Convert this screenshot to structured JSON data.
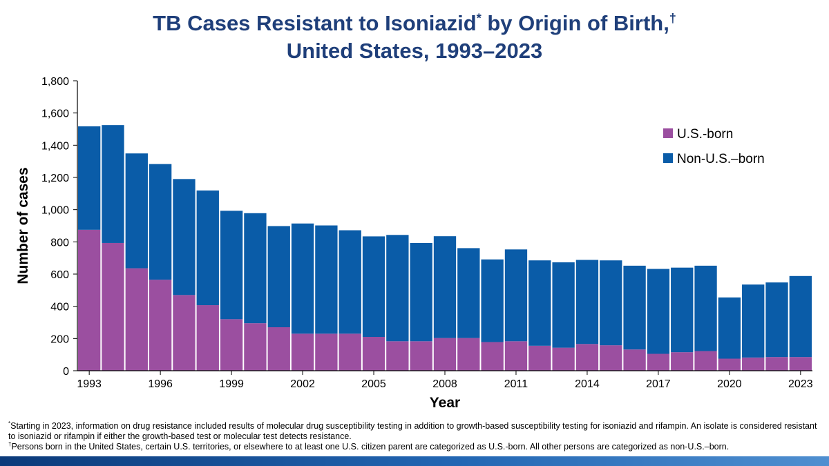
{
  "title": {
    "line1": "TB Cases Resistant to Isoniazid",
    "sup1": "*",
    "line1b": " by Origin of Birth,",
    "sup2": "†",
    "line2": "United States, 1993–2023"
  },
  "footnotes": {
    "note1_mark": "*",
    "note1": "Starting in 2023, information on drug resistance included results of molecular drug susceptibility testing in addition to growth-based susceptibility testing for isoniazid and rifampin. An isolate is considered resistant to isoniazid or rifampin if either the growth-based test or molecular test detects resistance.",
    "note2_mark": "†",
    "note2": "Persons born in the United States, certain U.S. territories, or elsewhere to at least one U.S. citizen parent are categorized as U.S.-born. All other persons are categorized as non-U.S.–born."
  },
  "chart_data": {
    "type": "bar",
    "stacked": true,
    "xlabel": "Year",
    "ylabel": "Number of cases",
    "ylim": [
      0,
      1800
    ],
    "yticks": [
      0,
      200,
      400,
      600,
      800,
      1000,
      1200,
      1400,
      1600,
      1800
    ],
    "ytick_labels": [
      "0",
      "200",
      "400",
      "600",
      "800",
      "1,000",
      "1,200",
      "1,400",
      "1,600",
      "1,800"
    ],
    "x": [
      1993,
      1994,
      1995,
      1996,
      1997,
      1998,
      1999,
      2000,
      2001,
      2002,
      2003,
      2004,
      2005,
      2006,
      2007,
      2008,
      2009,
      2010,
      2011,
      2012,
      2013,
      2014,
      2015,
      2016,
      2017,
      2018,
      2019,
      2020,
      2021,
      2022,
      2023
    ],
    "xtick_labels": [
      "1993",
      "1996",
      "1999",
      "2002",
      "2005",
      "2008",
      "2011",
      "2014",
      "2017",
      "2020",
      "2023"
    ],
    "legend_position": "right",
    "series": [
      {
        "name": "U.S.-born",
        "color": "#9b4fa0",
        "values": [
          875,
          793,
          636,
          565,
          470,
          407,
          320,
          295,
          270,
          230,
          230,
          230,
          210,
          183,
          183,
          203,
          203,
          178,
          183,
          155,
          143,
          166,
          158,
          132,
          105,
          115,
          122,
          75,
          82,
          85,
          85
        ]
      },
      {
        "name": "Non-U.S.–born",
        "color": "#0a5ca8",
        "values": [
          642,
          732,
          713,
          718,
          720,
          712,
          673,
          683,
          628,
          684,
          672,
          642,
          624,
          660,
          610,
          632,
          558,
          513,
          570,
          530,
          530,
          522,
          527,
          520,
          527,
          525,
          530,
          380,
          453,
          463,
          503
        ]
      }
    ]
  }
}
